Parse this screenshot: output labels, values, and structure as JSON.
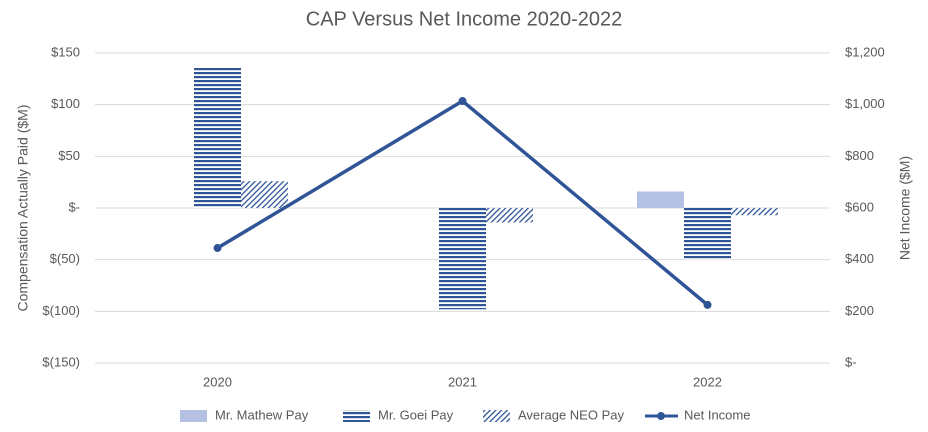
{
  "chart_data": {
    "type": "bar",
    "title": "CAP Versus Net Income 2020-2022",
    "y_label": "Compensation Actually Paid ($M)",
    "y2_label": "Net Income ($M)",
    "categories": [
      "2020",
      "2021",
      "2022"
    ],
    "series": [
      {
        "name": "Mr. Mathew Pay",
        "color": "#b4c1e3",
        "pattern": "solid",
        "values": [
          null,
          null,
          16
        ]
      },
      {
        "name": "Mr. Goei Pay",
        "color": "#2f5597",
        "pattern": "horizontal",
        "values": [
          136,
          -98,
          -50
        ]
      },
      {
        "name": "Average NEO Pay",
        "color": "#2f5597",
        "pattern": "diagonal",
        "values": [
          26,
          -14,
          -7
        ]
      },
      {
        "name": "Net Income",
        "color": "#2f5597",
        "type": "line",
        "axis": "y2",
        "values": [
          445,
          1014,
          225
        ]
      }
    ],
    "ylim": [
      -150,
      150
    ],
    "yticks": [
      {
        "value": -150,
        "label": "$(150)"
      },
      {
        "value": -100,
        "label": "$(100)"
      },
      {
        "value": -50,
        "label": "$(50)"
      },
      {
        "value": 0,
        "label": "$-"
      },
      {
        "value": 50,
        "label": "$50"
      },
      {
        "value": 100,
        "label": "$100"
      },
      {
        "value": 150,
        "label": "$150"
      }
    ],
    "y2lim": [
      0,
      1200
    ],
    "y2ticks": [
      {
        "value": 0,
        "label": "$-"
      },
      {
        "value": 200,
        "label": "$200"
      },
      {
        "value": 400,
        "label": "$400"
      },
      {
        "value": 600,
        "label": "$600"
      },
      {
        "value": 800,
        "label": "$800"
      },
      {
        "value": 1000,
        "label": "$1,000"
      },
      {
        "value": 1200,
        "label": "$1,200"
      }
    ],
    "grid": true,
    "legend": "bottom"
  }
}
